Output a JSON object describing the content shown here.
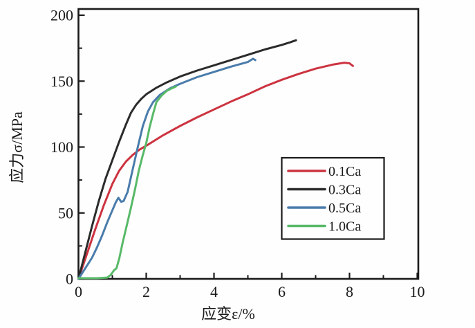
{
  "figure": {
    "background_color": "#fefefe",
    "axis_color": "#1a1a1a"
  },
  "chart_data": {
    "type": "line",
    "title": "",
    "xlabel": "应变ε/%",
    "ylabel": "应力σ/MPa",
    "xlim": [
      0,
      10
    ],
    "ylim": [
      0,
      200
    ],
    "x_major_ticks": [
      0,
      2,
      4,
      6,
      8,
      10
    ],
    "x_minor_ticks": [
      1,
      3,
      5,
      7,
      9
    ],
    "y_major_ticks": [
      0,
      50,
      100,
      150,
      200
    ],
    "y_minor_ticks": [
      25,
      75,
      125,
      175
    ],
    "grid": false,
    "legend": {
      "position": "inside-lower-right",
      "border": true,
      "entries": [
        "0.1Ca",
        "0.3Ca",
        "0.5Ca",
        "1.0Ca"
      ]
    },
    "series": [
      {
        "name": "0.1Ca",
        "color": "#cc3340",
        "points": [
          [
            0,
            0
          ],
          [
            0.25,
            19
          ],
          [
            0.5,
            38
          ],
          [
            0.75,
            56
          ],
          [
            1.0,
            72
          ],
          [
            1.2,
            82
          ],
          [
            1.4,
            89
          ],
          [
            1.6,
            94
          ],
          [
            1.8,
            98
          ],
          [
            2.0,
            101
          ],
          [
            2.5,
            109
          ],
          [
            3.0,
            116
          ],
          [
            3.5,
            122.5
          ],
          [
            4.0,
            128.5
          ],
          [
            4.5,
            134.5
          ],
          [
            5.0,
            140
          ],
          [
            5.5,
            146
          ],
          [
            6.0,
            151
          ],
          [
            6.5,
            155.5
          ],
          [
            7.0,
            159.5
          ],
          [
            7.5,
            162.5
          ],
          [
            7.85,
            164
          ],
          [
            8.0,
            163.5
          ],
          [
            8.1,
            161.5
          ]
        ]
      },
      {
        "name": "0.3Ca",
        "color": "#2b2b2b",
        "points": [
          [
            0,
            0
          ],
          [
            0.2,
            20
          ],
          [
            0.4,
            40
          ],
          [
            0.6,
            59
          ],
          [
            0.8,
            76
          ],
          [
            1.0,
            90
          ],
          [
            1.2,
            104
          ],
          [
            1.4,
            117
          ],
          [
            1.55,
            126
          ],
          [
            1.7,
            132
          ],
          [
            1.85,
            136.5
          ],
          [
            2.0,
            140
          ],
          [
            2.3,
            145
          ],
          [
            2.6,
            149
          ],
          [
            3.0,
            153.5
          ],
          [
            3.5,
            158
          ],
          [
            4.0,
            162
          ],
          [
            4.5,
            166
          ],
          [
            5.0,
            170
          ],
          [
            5.5,
            174
          ],
          [
            6.0,
            177.5
          ],
          [
            6.25,
            179.5
          ],
          [
            6.42,
            181
          ]
        ]
      },
      {
        "name": "0.5Ca",
        "color": "#4a7cab",
        "points": [
          [
            0,
            0
          ],
          [
            0.2,
            8
          ],
          [
            0.4,
            16
          ],
          [
            0.55,
            24
          ],
          [
            0.7,
            33
          ],
          [
            0.85,
            43
          ],
          [
            1.0,
            52
          ],
          [
            1.1,
            58
          ],
          [
            1.18,
            61.5
          ],
          [
            1.26,
            58.5
          ],
          [
            1.33,
            59
          ],
          [
            1.45,
            66
          ],
          [
            1.6,
            83
          ],
          [
            1.75,
            100
          ],
          [
            1.9,
            116
          ],
          [
            2.05,
            127
          ],
          [
            2.2,
            134
          ],
          [
            2.4,
            139.5
          ],
          [
            2.7,
            144.5
          ],
          [
            3.0,
            148
          ],
          [
            3.5,
            153
          ],
          [
            4.0,
            157
          ],
          [
            4.5,
            161
          ],
          [
            5.0,
            164.5
          ],
          [
            5.15,
            167
          ],
          [
            5.22,
            166
          ]
        ]
      },
      {
        "name": "1.0Ca",
        "color": "#58b968",
        "points": [
          [
            0,
            0.5
          ],
          [
            0.55,
            0.5
          ],
          [
            0.85,
            1
          ],
          [
            0.95,
            3
          ],
          [
            1.05,
            6.5
          ],
          [
            1.12,
            8
          ],
          [
            1.2,
            15
          ],
          [
            1.3,
            27
          ],
          [
            1.42,
            40
          ],
          [
            1.55,
            54
          ],
          [
            1.67,
            68
          ],
          [
            1.78,
            82
          ],
          [
            1.9,
            94
          ],
          [
            2.0,
            103
          ],
          [
            2.1,
            115
          ],
          [
            2.2,
            125
          ],
          [
            2.3,
            134
          ],
          [
            2.45,
            139
          ],
          [
            2.6,
            142.5
          ],
          [
            2.75,
            144.5
          ],
          [
            2.88,
            146
          ]
        ]
      }
    ]
  }
}
